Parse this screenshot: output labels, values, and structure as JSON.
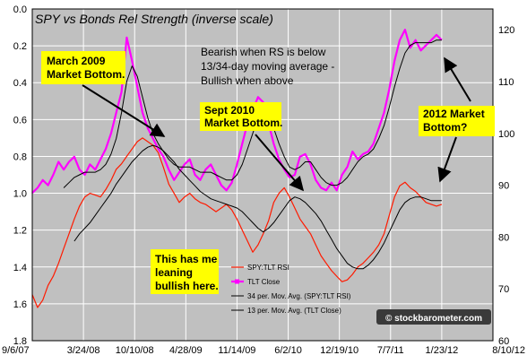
{
  "chart_data": {
    "type": "line",
    "title": "SPY vs Bonds Rel Strength (inverse scale)",
    "x_ticks": [
      "9/6/07",
      "3/24/08",
      "10/10/08",
      "4/28/09",
      "11/14/09",
      "6/2/10",
      "12/19/10",
      "7/7/11",
      "1/23/12",
      "8/10/12"
    ],
    "y_left": {
      "ticks": [
        "0.0",
        "0.2",
        "0.4",
        "0.6",
        "0.8",
        "1.0",
        "1.2",
        "1.4",
        "1.6",
        "1.8"
      ],
      "range": [
        0.0,
        1.8
      ],
      "inverted": true
    },
    "y_right": {
      "ticks": [
        "60",
        "70",
        "80",
        "90",
        "100",
        "110",
        "120"
      ],
      "range": [
        60,
        124
      ]
    },
    "grid": true,
    "legend_position": "lower-right inside plot",
    "series": [
      {
        "name": "SPY:TLT RSI",
        "axis": "left",
        "color": "#ff1a00",
        "values": [
          1.55,
          1.62,
          1.58,
          1.5,
          1.45,
          1.38,
          1.3,
          1.22,
          1.14,
          1.07,
          1.02,
          1.0,
          1.01,
          1.02,
          0.98,
          0.93,
          0.87,
          0.84,
          0.8,
          0.76,
          0.72,
          0.7,
          0.72,
          0.74,
          0.78,
          0.86,
          0.95,
          1.0,
          1.05,
          1.02,
          1.0,
          1.03,
          1.05,
          1.06,
          1.08,
          1.1,
          1.08,
          1.06,
          1.09,
          1.14,
          1.2,
          1.26,
          1.32,
          1.28,
          1.22,
          1.15,
          1.05,
          1.0,
          0.97,
          1.02,
          1.08,
          1.14,
          1.18,
          1.22,
          1.28,
          1.34,
          1.38,
          1.42,
          1.45,
          1.48,
          1.47,
          1.44,
          1.4,
          1.38,
          1.35,
          1.32,
          1.28,
          1.22,
          1.12,
          1.02,
          0.96,
          0.94,
          0.97,
          0.99,
          1.02,
          1.05,
          1.06,
          1.07,
          1.06
        ]
      },
      {
        "name": "TLT Close",
        "axis": "right",
        "color": "#ff00ff",
        "values": [
          88.5,
          89.5,
          91.0,
          90.0,
          92.0,
          94.5,
          93.0,
          94.5,
          95.5,
          93.0,
          92.0,
          94.0,
          93.0,
          95.0,
          97.0,
          100.0,
          104.0,
          108.0,
          118.5,
          114.0,
          109.0,
          104.0,
          101.0,
          99.0,
          97.0,
          95.5,
          93.0,
          91.0,
          92.5,
          94.0,
          95.0,
          92.0,
          91.0,
          93.0,
          94.0,
          92.0,
          90.0,
          89.0,
          90.5,
          94.0,
          98.0,
          102.0,
          104.5,
          107.0,
          106.0,
          102.0,
          98.0,
          95.0,
          93.0,
          91.5,
          92.0,
          95.5,
          96.0,
          94.0,
          91.0,
          89.5,
          89.0,
          90.5,
          89.0,
          92.0,
          93.5,
          96.5,
          95.0,
          96.0,
          96.5,
          98.0,
          101.0,
          104.0,
          108.5,
          114.0,
          118.0,
          120.0,
          116.5,
          118.0,
          116.0,
          117.0,
          118.0,
          119.0,
          118.0
        ]
      },
      {
        "name": "34 per. Mov. Avg. (SPY:TLT RSI)",
        "axis": "left",
        "color": "#000000",
        "values": [
          null,
          null,
          null,
          null,
          null,
          null,
          null,
          null,
          1.26,
          1.22,
          1.19,
          1.16,
          1.12,
          1.08,
          1.04,
          1.0,
          0.95,
          0.91,
          0.87,
          0.83,
          0.8,
          0.77,
          0.75,
          0.74,
          0.75,
          0.77,
          0.8,
          0.83,
          0.87,
          0.9,
          0.93,
          0.96,
          0.99,
          1.01,
          1.03,
          1.04,
          1.05,
          1.06,
          1.07,
          1.08,
          1.1,
          1.13,
          1.16,
          1.19,
          1.21,
          1.19,
          1.16,
          1.12,
          1.08,
          1.04,
          1.02,
          1.03,
          1.05,
          1.08,
          1.11,
          1.15,
          1.2,
          1.25,
          1.3,
          1.34,
          1.38,
          1.4,
          1.41,
          1.41,
          1.39,
          1.36,
          1.32,
          1.27,
          1.21,
          1.15,
          1.09,
          1.05,
          1.03,
          1.02,
          1.02,
          1.03,
          1.04,
          1.04,
          1.04
        ]
      },
      {
        "name": "13 per. Mov. Avg. (TLT Close)",
        "axis": "right",
        "color": "#000000",
        "values": [
          null,
          null,
          null,
          null,
          null,
          null,
          89.5,
          90.5,
          91.5,
          92.0,
          92.5,
          92.5,
          92.5,
          93.0,
          94.0,
          96.0,
          99.0,
          104.0,
          110.0,
          113.0,
          111.0,
          107.0,
          103.0,
          100.0,
          98.0,
          96.5,
          95.0,
          94.0,
          93.5,
          93.5,
          93.5,
          93.0,
          92.5,
          92.5,
          92.5,
          92.0,
          91.5,
          91.0,
          91.0,
          92.0,
          94.0,
          97.0,
          100.0,
          103.0,
          104.5,
          104.0,
          101.0,
          98.0,
          95.5,
          93.5,
          93.0,
          93.5,
          94.5,
          94.5,
          93.0,
          91.5,
          90.5,
          90.0,
          90.0,
          90.5,
          91.5,
          93.0,
          94.5,
          95.5,
          96.0,
          97.0,
          99.0,
          101.5,
          105.0,
          109.0,
          112.5,
          115.5,
          117.0,
          117.5,
          117.5,
          117.5,
          117.5,
          118.0,
          118.0
        ]
      }
    ],
    "annotations": [
      {
        "text": [
          "March 2009",
          "Market Bottom."
        ],
        "box_fill": "#ffff00"
      },
      {
        "text": [
          "Sept 2010",
          "Market Bottom."
        ],
        "box_fill": "#ffff00"
      },
      {
        "text": [
          "2012 Market",
          "Bottom?"
        ],
        "box_fill": "#ffff00"
      },
      {
        "text": [
          "This has me",
          "leaning",
          "bullish here."
        ],
        "box_fill": "#ffff00"
      },
      {
        "text": [
          "Bearish when RS is below",
          "13/34-day  moving average -",
          "Bullish when above"
        ],
        "box_fill": "none"
      }
    ],
    "watermark": "© stockbarometer.com",
    "colors": {
      "plot_background": "#c0c0c0",
      "page_background": "#ffffff",
      "gridline": "#ffffff",
      "arrow": "#000000"
    }
  }
}
